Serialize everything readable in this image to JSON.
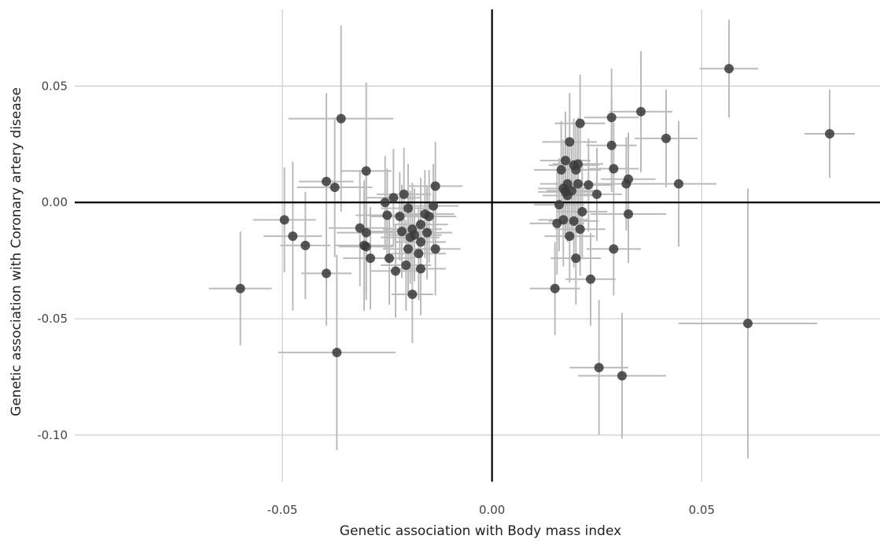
{
  "chart_data": {
    "type": "scatter",
    "title": "",
    "xlabel": "Genetic association with Body mass index",
    "ylabel": "Genetic association with Coronary artery disease",
    "xlim": [
      -0.0995,
      0.0925
    ],
    "ylim": [
      -0.12,
      0.087
    ],
    "x_ticks": [
      -0.05,
      0.0,
      0.05
    ],
    "x_tick_labels": [
      "-0.05",
      "0.00",
      "0.05"
    ],
    "y_ticks": [
      -0.1,
      -0.05,
      0.0,
      0.05
    ],
    "y_tick_labels": [
      "-0.10",
      "-0.05",
      "0.00",
      "0.05"
    ],
    "grid": true,
    "zero_lines": true,
    "error_bars": "horizontal and vertical, 95% CI",
    "colors": {
      "point": "#3a3a3a",
      "error_bar": "#bbbbbb",
      "grid": "#cccccc",
      "zero_line": "#000000"
    },
    "points": [
      {
        "x": -0.06,
        "y": -0.037,
        "xerr": 0.0075,
        "yerr": 0.0245
      },
      {
        "x": -0.0495,
        "y": -0.0075,
        "xerr": 0.0075,
        "yerr": 0.0225
      },
      {
        "x": -0.0475,
        "y": -0.0145,
        "xerr": 0.007,
        "yerr": 0.032
      },
      {
        "x": -0.0445,
        "y": -0.0185,
        "xerr": 0.006,
        "yerr": 0.023
      },
      {
        "x": -0.0395,
        "y": -0.0305,
        "xerr": 0.006,
        "yerr": 0.0225
      },
      {
        "x": -0.0395,
        "y": 0.009,
        "xerr": 0.0065,
        "yerr": 0.038
      },
      {
        "x": -0.0375,
        "y": 0.0065,
        "xerr": 0.009,
        "yerr": 0.03
      },
      {
        "x": -0.037,
        "y": -0.0645,
        "xerr": 0.014,
        "yerr": 0.042
      },
      {
        "x": -0.036,
        "y": 0.036,
        "xerr": 0.0125,
        "yerr": 0.04
      },
      {
        "x": -0.0315,
        "y": -0.011,
        "xerr": 0.0075,
        "yerr": 0.025
      },
      {
        "x": -0.0305,
        "y": -0.0185,
        "xerr": 0.007,
        "yerr": 0.028
      },
      {
        "x": -0.03,
        "y": -0.019,
        "xerr": 0.0065,
        "yerr": 0.023
      },
      {
        "x": -0.03,
        "y": -0.013,
        "xerr": 0.007,
        "yerr": 0.025
      },
      {
        "x": -0.03,
        "y": 0.0135,
        "xerr": 0.006,
        "yerr": 0.038
      },
      {
        "x": -0.029,
        "y": -0.024,
        "xerr": 0.0065,
        "yerr": 0.022
      },
      {
        "x": -0.0255,
        "y": 0.0,
        "xerr": 0.006,
        "yerr": 0.02
      },
      {
        "x": -0.025,
        "y": -0.0055,
        "xerr": 0.0075,
        "yerr": 0.02
      },
      {
        "x": -0.0245,
        "y": -0.024,
        "xerr": 0.006,
        "yerr": 0.02
      },
      {
        "x": -0.0235,
        "y": 0.002,
        "xerr": 0.0065,
        "yerr": 0.021
      },
      {
        "x": -0.023,
        "y": -0.0295,
        "xerr": 0.006,
        "yerr": 0.02
      },
      {
        "x": -0.022,
        "y": -0.006,
        "xerr": 0.007,
        "yerr": 0.019
      },
      {
        "x": -0.0215,
        "y": -0.0125,
        "xerr": 0.0075,
        "yerr": 0.02
      },
      {
        "x": -0.021,
        "y": 0.0035,
        "xerr": 0.0065,
        "yerr": 0.02
      },
      {
        "x": -0.0205,
        "y": -0.027,
        "xerr": 0.006,
        "yerr": 0.0195
      },
      {
        "x": -0.02,
        "y": -0.02,
        "xerr": 0.006,
        "yerr": 0.02
      },
      {
        "x": -0.02,
        "y": -0.0025,
        "xerr": 0.0065,
        "yerr": 0.019
      },
      {
        "x": -0.0195,
        "y": -0.015,
        "xerr": 0.007,
        "yerr": 0.02
      },
      {
        "x": -0.019,
        "y": -0.0395,
        "xerr": 0.005,
        "yerr": 0.021
      },
      {
        "x": -0.019,
        "y": -0.0115,
        "xerr": 0.007,
        "yerr": 0.02
      },
      {
        "x": -0.0185,
        "y": -0.014,
        "xerr": 0.0065,
        "yerr": 0.02
      },
      {
        "x": -0.0175,
        "y": -0.022,
        "xerr": 0.0065,
        "yerr": 0.02
      },
      {
        "x": -0.017,
        "y": -0.0285,
        "xerr": 0.006,
        "yerr": 0.02
      },
      {
        "x": -0.017,
        "y": -0.0095,
        "xerr": 0.0065,
        "yerr": 0.02
      },
      {
        "x": -0.017,
        "y": -0.017,
        "xerr": 0.006,
        "yerr": 0.02
      },
      {
        "x": -0.016,
        "y": -0.005,
        "xerr": 0.007,
        "yerr": 0.019
      },
      {
        "x": -0.0155,
        "y": -0.013,
        "xerr": 0.006,
        "yerr": 0.02
      },
      {
        "x": -0.015,
        "y": -0.006,
        "xerr": 0.0065,
        "yerr": 0.02
      },
      {
        "x": -0.014,
        "y": -0.0015,
        "xerr": 0.006,
        "yerr": 0.018
      },
      {
        "x": -0.0135,
        "y": -0.02,
        "xerr": 0.006,
        "yerr": 0.02
      },
      {
        "x": -0.0135,
        "y": 0.007,
        "xerr": 0.0065,
        "yerr": 0.019
      },
      {
        "x": 0.015,
        "y": -0.037,
        "xerr": 0.006,
        "yerr": 0.02
      },
      {
        "x": 0.0155,
        "y": -0.009,
        "xerr": 0.0065,
        "yerr": 0.022
      },
      {
        "x": 0.016,
        "y": -0.001,
        "xerr": 0.006,
        "yerr": 0.02
      },
      {
        "x": 0.0165,
        "y": 0.014,
        "xerr": 0.0065,
        "yerr": 0.021
      },
      {
        "x": 0.017,
        "y": -0.0075,
        "xerr": 0.006,
        "yerr": 0.02
      },
      {
        "x": 0.017,
        "y": 0.006,
        "xerr": 0.006,
        "yerr": 0.021
      },
      {
        "x": 0.0175,
        "y": 0.0045,
        "xerr": 0.0065,
        "yerr": 0.02
      },
      {
        "x": 0.0175,
        "y": 0.018,
        "xerr": 0.006,
        "yerr": 0.021
      },
      {
        "x": 0.018,
        "y": 0.008,
        "xerr": 0.0065,
        "yerr": 0.02
      },
      {
        "x": 0.018,
        "y": 0.003,
        "xerr": 0.006,
        "yerr": 0.02
      },
      {
        "x": 0.0185,
        "y": -0.0145,
        "xerr": 0.006,
        "yerr": 0.02
      },
      {
        "x": 0.0185,
        "y": 0.026,
        "xerr": 0.0065,
        "yerr": 0.021
      },
      {
        "x": 0.019,
        "y": 0.005,
        "xerr": 0.006,
        "yerr": 0.02
      },
      {
        "x": 0.0195,
        "y": -0.008,
        "xerr": 0.006,
        "yerr": 0.02
      },
      {
        "x": 0.0195,
        "y": 0.016,
        "xerr": 0.006,
        "yerr": 0.02
      },
      {
        "x": 0.02,
        "y": 0.014,
        "xerr": 0.006,
        "yerr": 0.02
      },
      {
        "x": 0.02,
        "y": -0.024,
        "xerr": 0.006,
        "yerr": 0.02
      },
      {
        "x": 0.0205,
        "y": 0.008,
        "xerr": 0.006,
        "yerr": 0.02
      },
      {
        "x": 0.0205,
        "y": 0.0165,
        "xerr": 0.006,
        "yerr": 0.02
      },
      {
        "x": 0.021,
        "y": -0.0115,
        "xerr": 0.006,
        "yerr": 0.02
      },
      {
        "x": 0.021,
        "y": 0.034,
        "xerr": 0.006,
        "yerr": 0.021
      },
      {
        "x": 0.0215,
        "y": -0.004,
        "xerr": 0.006,
        "yerr": 0.02
      },
      {
        "x": 0.023,
        "y": 0.0075,
        "xerr": 0.006,
        "yerr": 0.02
      },
      {
        "x": 0.0235,
        "y": -0.033,
        "xerr": 0.006,
        "yerr": 0.02
      },
      {
        "x": 0.025,
        "y": 0.0035,
        "xerr": 0.006,
        "yerr": 0.02
      },
      {
        "x": 0.0255,
        "y": -0.071,
        "xerr": 0.007,
        "yerr": 0.029
      },
      {
        "x": 0.0285,
        "y": 0.0365,
        "xerr": 0.0065,
        "yerr": 0.021
      },
      {
        "x": 0.0285,
        "y": 0.0245,
        "xerr": 0.006,
        "yerr": 0.02
      },
      {
        "x": 0.029,
        "y": 0.0145,
        "xerr": 0.006,
        "yerr": 0.02
      },
      {
        "x": 0.029,
        "y": -0.02,
        "xerr": 0.0065,
        "yerr": 0.02
      },
      {
        "x": 0.031,
        "y": -0.0745,
        "xerr": 0.0105,
        "yerr": 0.027
      },
      {
        "x": 0.032,
        "y": 0.008,
        "xerr": 0.0065,
        "yerr": 0.02
      },
      {
        "x": 0.0325,
        "y": 0.01,
        "xerr": 0.0065,
        "yerr": 0.02
      },
      {
        "x": 0.0325,
        "y": -0.005,
        "xerr": 0.009,
        "yerr": 0.021
      },
      {
        "x": 0.0355,
        "y": 0.039,
        "xerr": 0.0075,
        "yerr": 0.026
      },
      {
        "x": 0.0415,
        "y": 0.0275,
        "xerr": 0.0075,
        "yerr": 0.021
      },
      {
        "x": 0.0445,
        "y": 0.008,
        "xerr": 0.009,
        "yerr": 0.027
      },
      {
        "x": 0.0565,
        "y": 0.0575,
        "xerr": 0.007,
        "yerr": 0.021
      },
      {
        "x": 0.061,
        "y": -0.052,
        "xerr": 0.0165,
        "yerr": 0.058
      },
      {
        "x": 0.0805,
        "y": 0.0295,
        "xerr": 0.006,
        "yerr": 0.019
      }
    ]
  }
}
